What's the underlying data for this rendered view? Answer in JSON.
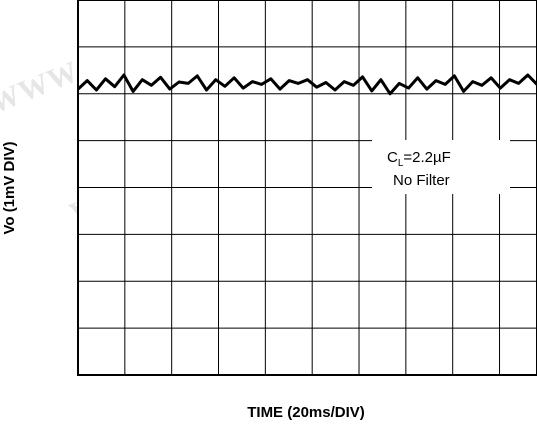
{
  "watermark": "WWW.100Y.COM.TW",
  "chart_data": {
    "type": "line",
    "title": "",
    "xlabel": "TIME (20ms/DIV)",
    "ylabel": "Vo (1mV DIV)",
    "x_divisions": 10,
    "y_divisions": 8,
    "x_range_ms": [
      0,
      200
    ],
    "y_range_mV": [
      0,
      8
    ],
    "grid": true,
    "annotation": {
      "line1_symbol": "C",
      "line1_subscript": "L",
      "line1_value": "=2.2µF",
      "line2": "No Filter"
    },
    "series": [
      {
        "name": "",
        "color": "#000000",
        "x": [
          0,
          4,
          8,
          12,
          16,
          20,
          24,
          28,
          32,
          36,
          40,
          44,
          48,
          52,
          56,
          60,
          64,
          68,
          72,
          76,
          80,
          84,
          88,
          92,
          96,
          100,
          104,
          108,
          112,
          116,
          120,
          124,
          128,
          132,
          136,
          140,
          144,
          148,
          152,
          156,
          160,
          164,
          168,
          172,
          176,
          180,
          184,
          188,
          192,
          196,
          200
        ],
        "y": [
          6.1,
          6.28,
          6.08,
          6.32,
          6.15,
          6.4,
          6.05,
          6.3,
          6.18,
          6.35,
          6.1,
          6.25,
          6.22,
          6.38,
          6.08,
          6.3,
          6.16,
          6.34,
          6.12,
          6.26,
          6.2,
          6.32,
          6.1,
          6.28,
          6.22,
          6.3,
          6.14,
          6.24,
          6.08,
          6.26,
          6.18,
          6.36,
          6.06,
          6.3,
          6.0,
          6.22,
          6.12,
          6.34,
          6.1,
          6.28,
          6.2,
          6.38,
          6.05,
          6.26,
          6.18,
          6.34,
          6.12,
          6.3,
          6.22,
          6.4,
          6.2
        ]
      }
    ]
  }
}
